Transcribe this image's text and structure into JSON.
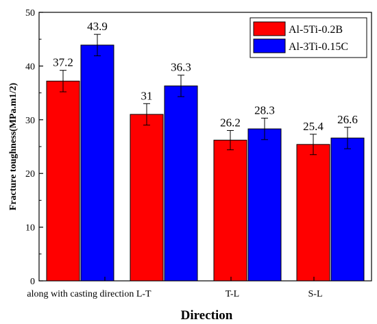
{
  "chart_data": {
    "type": "bar",
    "categories": [
      "along with casting direction L-T",
      "T-L",
      "S-L"
    ],
    "category_groups": [
      {
        "label": "along with casting direction L-T",
        "bars": [
          0,
          1,
          2,
          3
        ]
      },
      {
        "label": "T-L",
        "bars": [
          4,
          5
        ]
      },
      {
        "label": "S-L",
        "bars": [
          6,
          7
        ]
      }
    ],
    "bars": [
      {
        "series": 0,
        "value": 37.2,
        "label": "37.2",
        "error": 2.0
      },
      {
        "series": 1,
        "value": 43.9,
        "label": "43.9",
        "error": 2.0
      },
      {
        "series": 0,
        "value": 31.0,
        "label": "31",
        "error": 2.0
      },
      {
        "series": 1,
        "value": 36.3,
        "label": "36.3",
        "error": 2.0
      },
      {
        "series": 0,
        "value": 26.2,
        "label": "26.2",
        "error": 1.8
      },
      {
        "series": 1,
        "value": 28.3,
        "label": "28.3",
        "error": 2.0
      },
      {
        "series": 0,
        "value": 25.4,
        "label": "25.4",
        "error": 1.9
      },
      {
        "series": 1,
        "value": 26.6,
        "label": "26.6",
        "error": 2.0
      }
    ],
    "series": [
      {
        "name": "Al-5Ti-0.2B",
        "color": "#ff0000"
      },
      {
        "name": "Al-3Ti-0.15C",
        "color": "#0000ff"
      }
    ],
    "title": "",
    "xlabel": "Direction",
    "ylabel": "Fracture toughness(MPa.m1/2)",
    "ylim": [
      0,
      50
    ],
    "yticks": [
      "0",
      "10",
      "20",
      "30",
      "40",
      "50"
    ],
    "grid": false,
    "legend": "top-right"
  }
}
